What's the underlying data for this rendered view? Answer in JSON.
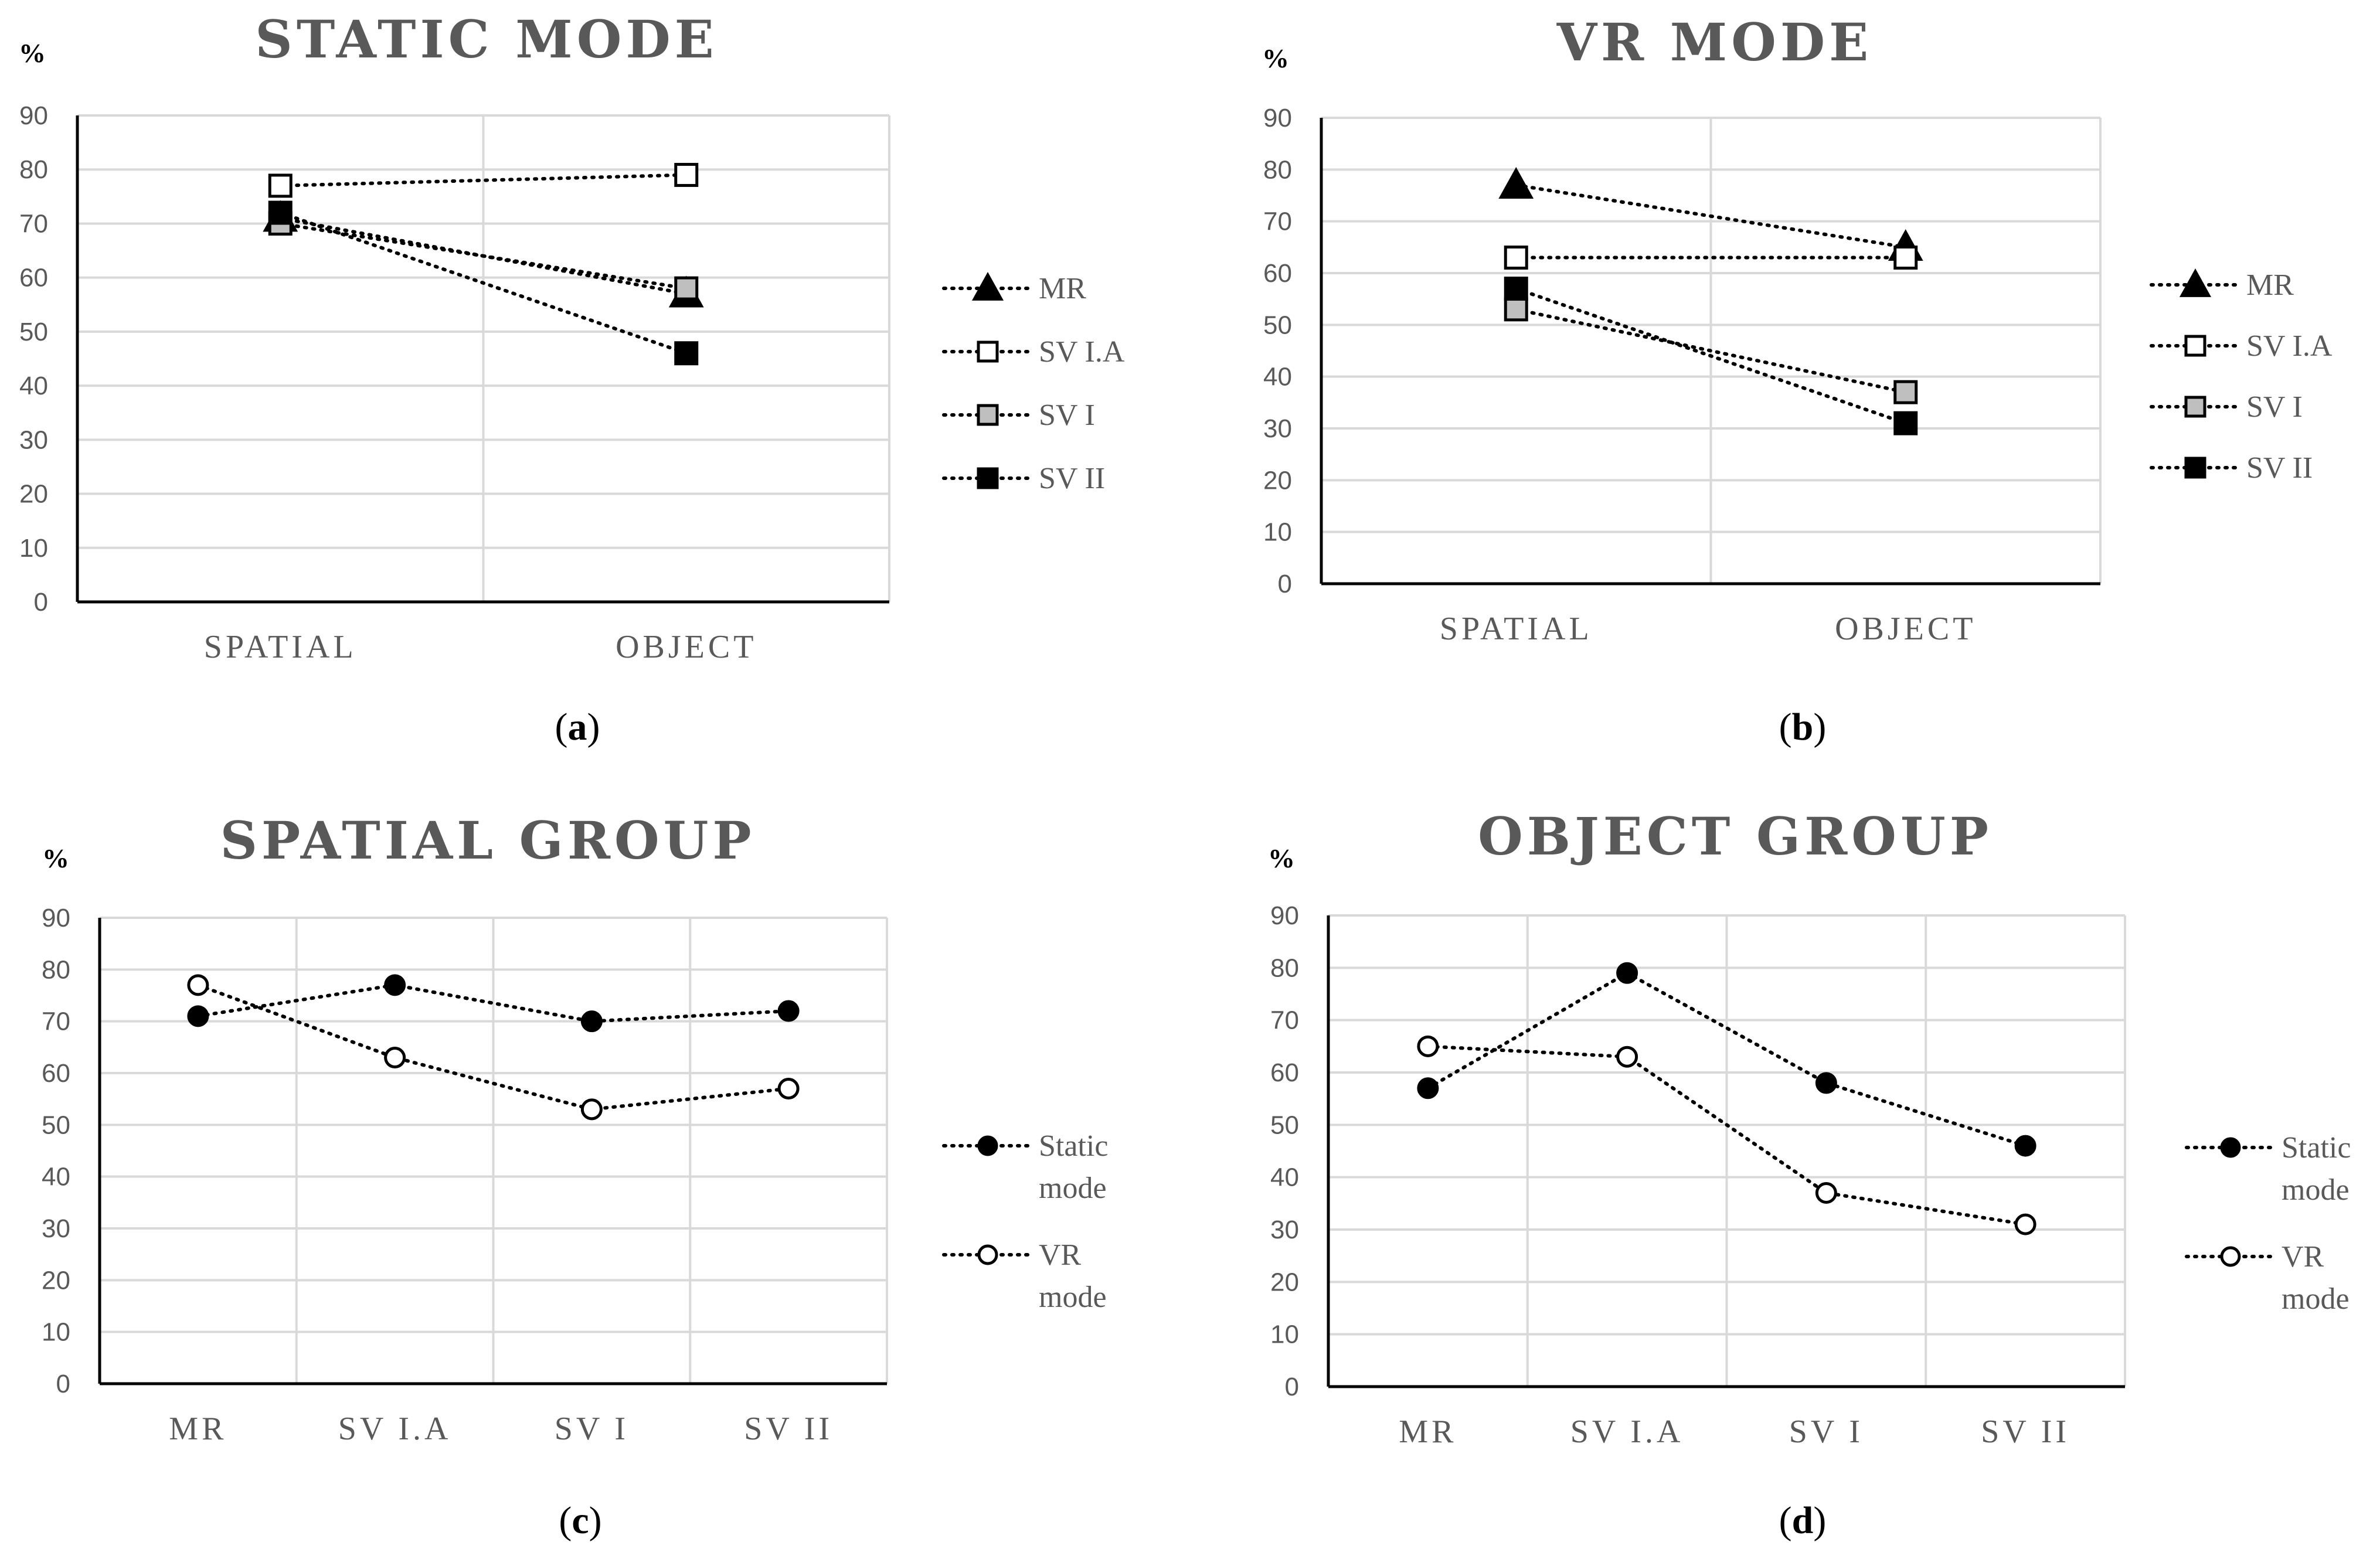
{
  "chart_data": [
    {
      "type": "line",
      "title": "STATIC MODE",
      "ylabel": "%",
      "xlabel": "",
      "caption_letter": "a",
      "categories": [
        "SPATIAL",
        "OBJECT"
      ],
      "ylim": [
        0,
        90
      ],
      "yticks": [
        0,
        10,
        20,
        30,
        40,
        50,
        60,
        70,
        80,
        90
      ],
      "grid": true,
      "legend_position": "right",
      "series": [
        {
          "name": "MR",
          "marker": "triangle",
          "fill": "#000000",
          "values": [
            71,
            57
          ]
        },
        {
          "name": "SV I.A",
          "marker": "square",
          "fill": "#ffffff",
          "values": [
            77,
            79
          ]
        },
        {
          "name": "SV I",
          "marker": "square",
          "fill": "#bfbfbf",
          "values": [
            70,
            58
          ]
        },
        {
          "name": "SV II",
          "marker": "square",
          "fill": "#000000",
          "values": [
            72,
            46
          ]
        }
      ]
    },
    {
      "type": "line",
      "title": "VR MODE",
      "ylabel": "%",
      "xlabel": "",
      "caption_letter": "b",
      "categories": [
        "SPATIAL",
        "OBJECT"
      ],
      "ylim": [
        0,
        90
      ],
      "yticks": [
        0,
        10,
        20,
        30,
        40,
        50,
        60,
        70,
        80,
        90
      ],
      "grid": true,
      "legend_position": "right",
      "series": [
        {
          "name": "MR",
          "marker": "triangle",
          "fill": "#000000",
          "values": [
            77,
            65
          ]
        },
        {
          "name": "SV I.A",
          "marker": "square",
          "fill": "#ffffff",
          "values": [
            63,
            63
          ]
        },
        {
          "name": "SV I",
          "marker": "square",
          "fill": "#bfbfbf",
          "values": [
            53,
            37
          ]
        },
        {
          "name": "SV II",
          "marker": "square",
          "fill": "#000000",
          "values": [
            57,
            31
          ]
        }
      ]
    },
    {
      "type": "line",
      "title": "SPATIAL GROUP",
      "ylabel": "%",
      "xlabel": "",
      "caption_letter": "c",
      "categories": [
        "MR",
        "SV I.A",
        "SV I",
        "SV II"
      ],
      "ylim": [
        0,
        90
      ],
      "yticks": [
        0,
        10,
        20,
        30,
        40,
        50,
        60,
        70,
        80,
        90
      ],
      "grid": true,
      "legend_position": "right",
      "series": [
        {
          "name": "Static mode",
          "label_lines": [
            "Static",
            "mode"
          ],
          "marker": "circle",
          "fill": "#000000",
          "values": [
            71,
            77,
            70,
            72
          ]
        },
        {
          "name": "VR mode",
          "label_lines": [
            "VR",
            "mode"
          ],
          "marker": "circle",
          "fill": "#ffffff",
          "values": [
            77,
            63,
            53,
            57
          ]
        }
      ]
    },
    {
      "type": "line",
      "title": "OBJECT GROUP",
      "ylabel": "%",
      "xlabel": "",
      "caption_letter": "d",
      "categories": [
        "MR",
        "SV I.A",
        "SV I",
        "SV II"
      ],
      "ylim": [
        0,
        90
      ],
      "yticks": [
        0,
        10,
        20,
        30,
        40,
        50,
        60,
        70,
        80,
        90
      ],
      "grid": true,
      "legend_position": "right",
      "series": [
        {
          "name": "Static mode",
          "label_lines": [
            "Static",
            "mode"
          ],
          "marker": "circle",
          "fill": "#000000",
          "values": [
            57,
            79,
            58,
            46
          ]
        },
        {
          "name": "VR mode",
          "label_lines": [
            "VR",
            "mode"
          ],
          "marker": "circle",
          "fill": "#ffffff",
          "values": [
            65,
            63,
            37,
            31
          ]
        }
      ]
    }
  ]
}
